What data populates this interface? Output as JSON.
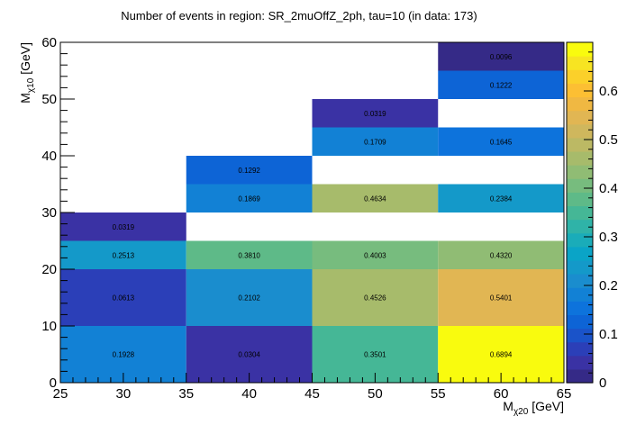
{
  "chart_data": {
    "type": "heatmap",
    "title": "Number of events in region: SR_2muOffZ_2ph, tau=10 (in data: 173)",
    "xlabel": {
      "base": "M",
      "sub": "χ20",
      "unit": " [GeV]"
    },
    "ylabel": {
      "base": "M",
      "sub": "χ10",
      "unit": " [GeV]"
    },
    "xlim": [
      25,
      65
    ],
    "ylim": [
      0,
      60
    ],
    "xticks": [
      25,
      30,
      35,
      40,
      45,
      50,
      55,
      60,
      65
    ],
    "yticks": [
      0,
      10,
      20,
      30,
      40,
      50,
      60
    ],
    "zlim": [
      0,
      0.7
    ],
    "zticks": [
      0,
      0.1,
      0.2,
      0.3,
      0.4,
      0.5,
      0.6
    ],
    "palette": [
      "#352a87",
      "#3a32a4",
      "#2b3fb8",
      "#1a53c9",
      "#0d64d6",
      "#0d73dc",
      "#1281d5",
      "#1a8dce",
      "#1499c9",
      "#0aa4c7",
      "#1aacb9",
      "#2fb3a8",
      "#45b796",
      "#5eba88",
      "#77bc7e",
      "#90bc74",
      "#a7bb6b",
      "#bcb964",
      "#cfb75d",
      "#e1b653",
      "#f0b842",
      "#fcbf33",
      "#fbd02a",
      "#f7e422",
      "#f9fb0e"
    ],
    "cells": [
      {
        "x": [
          25,
          35
        ],
        "y": [
          0,
          10
        ],
        "value": 0.1928,
        "label": "0.1928"
      },
      {
        "x": [
          35,
          45
        ],
        "y": [
          0,
          10
        ],
        "value": 0.0304,
        "label": "0.0304"
      },
      {
        "x": [
          45,
          55
        ],
        "y": [
          0,
          10
        ],
        "value": 0.3501,
        "label": "0.3501"
      },
      {
        "x": [
          55,
          65
        ],
        "y": [
          0,
          10
        ],
        "value": 0.6894,
        "label": "0.6894"
      },
      {
        "x": [
          25,
          35
        ],
        "y": [
          10,
          20
        ],
        "value": 0.0613,
        "label": "0.0613"
      },
      {
        "x": [
          35,
          45
        ],
        "y": [
          10,
          20
        ],
        "value": 0.2102,
        "label": "0.2102"
      },
      {
        "x": [
          45,
          55
        ],
        "y": [
          10,
          20
        ],
        "value": 0.4526,
        "label": "0.4526"
      },
      {
        "x": [
          55,
          65
        ],
        "y": [
          10,
          20
        ],
        "value": 0.5401,
        "label": "0.5401"
      },
      {
        "x": [
          25,
          35
        ],
        "y": [
          20,
          25
        ],
        "value": 0.2513,
        "label": "0.2513"
      },
      {
        "x": [
          35,
          45
        ],
        "y": [
          20,
          25
        ],
        "value": 0.381,
        "label": "0.3810"
      },
      {
        "x": [
          45,
          55
        ],
        "y": [
          20,
          25
        ],
        "value": 0.4003,
        "label": "0.4003"
      },
      {
        "x": [
          55,
          65
        ],
        "y": [
          20,
          25
        ],
        "value": 0.432,
        "label": "0.4320"
      },
      {
        "x": [
          25,
          35
        ],
        "y": [
          25,
          30
        ],
        "value": 0.0319,
        "label": "0.0319"
      },
      {
        "x": [
          35,
          45
        ],
        "y": [
          30,
          35
        ],
        "value": 0.1869,
        "label": "0.1869"
      },
      {
        "x": [
          45,
          55
        ],
        "y": [
          30,
          35
        ],
        "value": 0.4634,
        "label": "0.4634"
      },
      {
        "x": [
          55,
          65
        ],
        "y": [
          30,
          35
        ],
        "value": 0.2384,
        "label": "0.2384"
      },
      {
        "x": [
          35,
          45
        ],
        "y": [
          35,
          40
        ],
        "value": 0.1292,
        "label": "0.1292"
      },
      {
        "x": [
          45,
          55
        ],
        "y": [
          40,
          45
        ],
        "value": 0.1709,
        "label": "0.1709"
      },
      {
        "x": [
          55,
          65
        ],
        "y": [
          40,
          45
        ],
        "value": 0.1645,
        "label": "0.1645"
      },
      {
        "x": [
          45,
          55
        ],
        "y": [
          45,
          50
        ],
        "value": 0.0319,
        "label": "0.0319"
      },
      {
        "x": [
          55,
          65
        ],
        "y": [
          50,
          55
        ],
        "value": 0.1222,
        "label": "0.1222"
      },
      {
        "x": [
          55,
          65
        ],
        "y": [
          55,
          60
        ],
        "value": 0.0096,
        "label": "0.0096"
      }
    ]
  }
}
